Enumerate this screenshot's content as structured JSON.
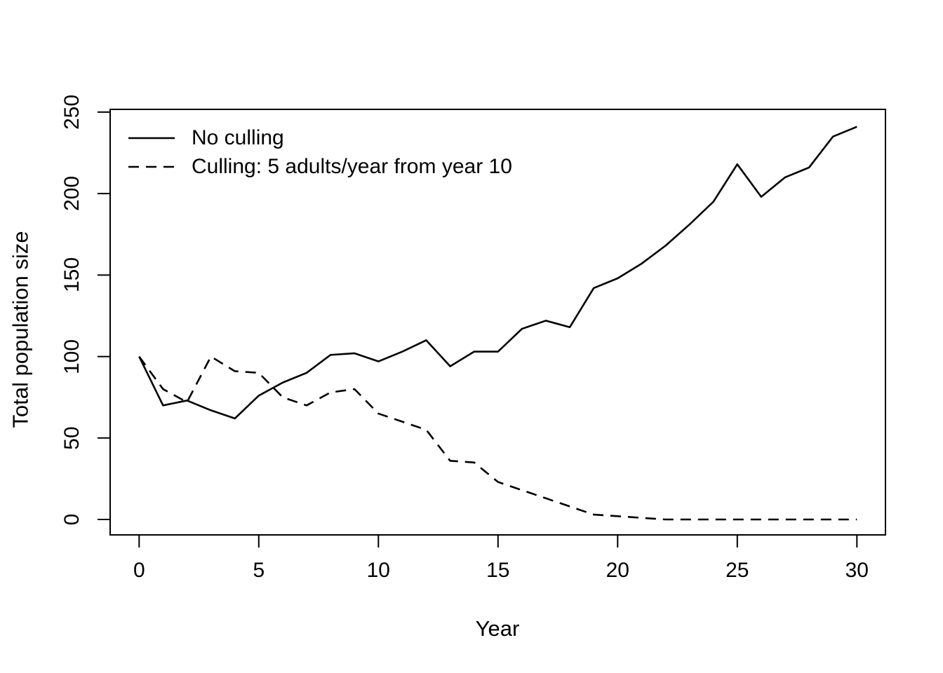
{
  "figure": {
    "xlabel": "Year",
    "ylabel": "Total population size",
    "background_color": "#ffffff",
    "line_color": "#000000"
  },
  "legend": {
    "items": [
      {
        "label": "No culling",
        "style": "solid"
      },
      {
        "label": "Culling: 5 adults/year from year 10",
        "style": "dashed"
      }
    ]
  },
  "chart_data": {
    "type": "line",
    "title": "",
    "xlabel": "Year",
    "ylabel": "Total population size",
    "xlim": [
      0,
      30
    ],
    "ylim": [
      0,
      250
    ],
    "xticks": [
      0,
      5,
      10,
      15,
      20,
      25,
      30
    ],
    "yticks": [
      0,
      50,
      100,
      150,
      200,
      250
    ],
    "grid": false,
    "legend_position": "top-left",
    "x": [
      0,
      1,
      2,
      3,
      4,
      5,
      6,
      7,
      8,
      9,
      10,
      11,
      12,
      13,
      14,
      15,
      16,
      17,
      18,
      19,
      20,
      21,
      22,
      23,
      24,
      25,
      26,
      27,
      28,
      29,
      30
    ],
    "series": [
      {
        "name": "No culling",
        "style": "solid",
        "color": "#000000",
        "values": [
          100,
          70,
          73,
          67,
          62,
          76,
          84,
          90,
          101,
          102,
          97,
          103,
          110,
          94,
          103,
          103,
          117,
          122,
          118,
          142,
          148,
          157,
          168,
          181,
          195,
          218,
          198,
          210,
          216,
          235,
          241
        ]
      },
      {
        "name": "Culling: 5 adults/year from year 10",
        "style": "dashed",
        "color": "#000000",
        "values": [
          100,
          80,
          72,
          100,
          91,
          90,
          75,
          70,
          78,
          80,
          65,
          60,
          55,
          36,
          35,
          23,
          18,
          13,
          8,
          3,
          2,
          1,
          0,
          0,
          0,
          0,
          0,
          0,
          0,
          0,
          0
        ]
      }
    ]
  }
}
